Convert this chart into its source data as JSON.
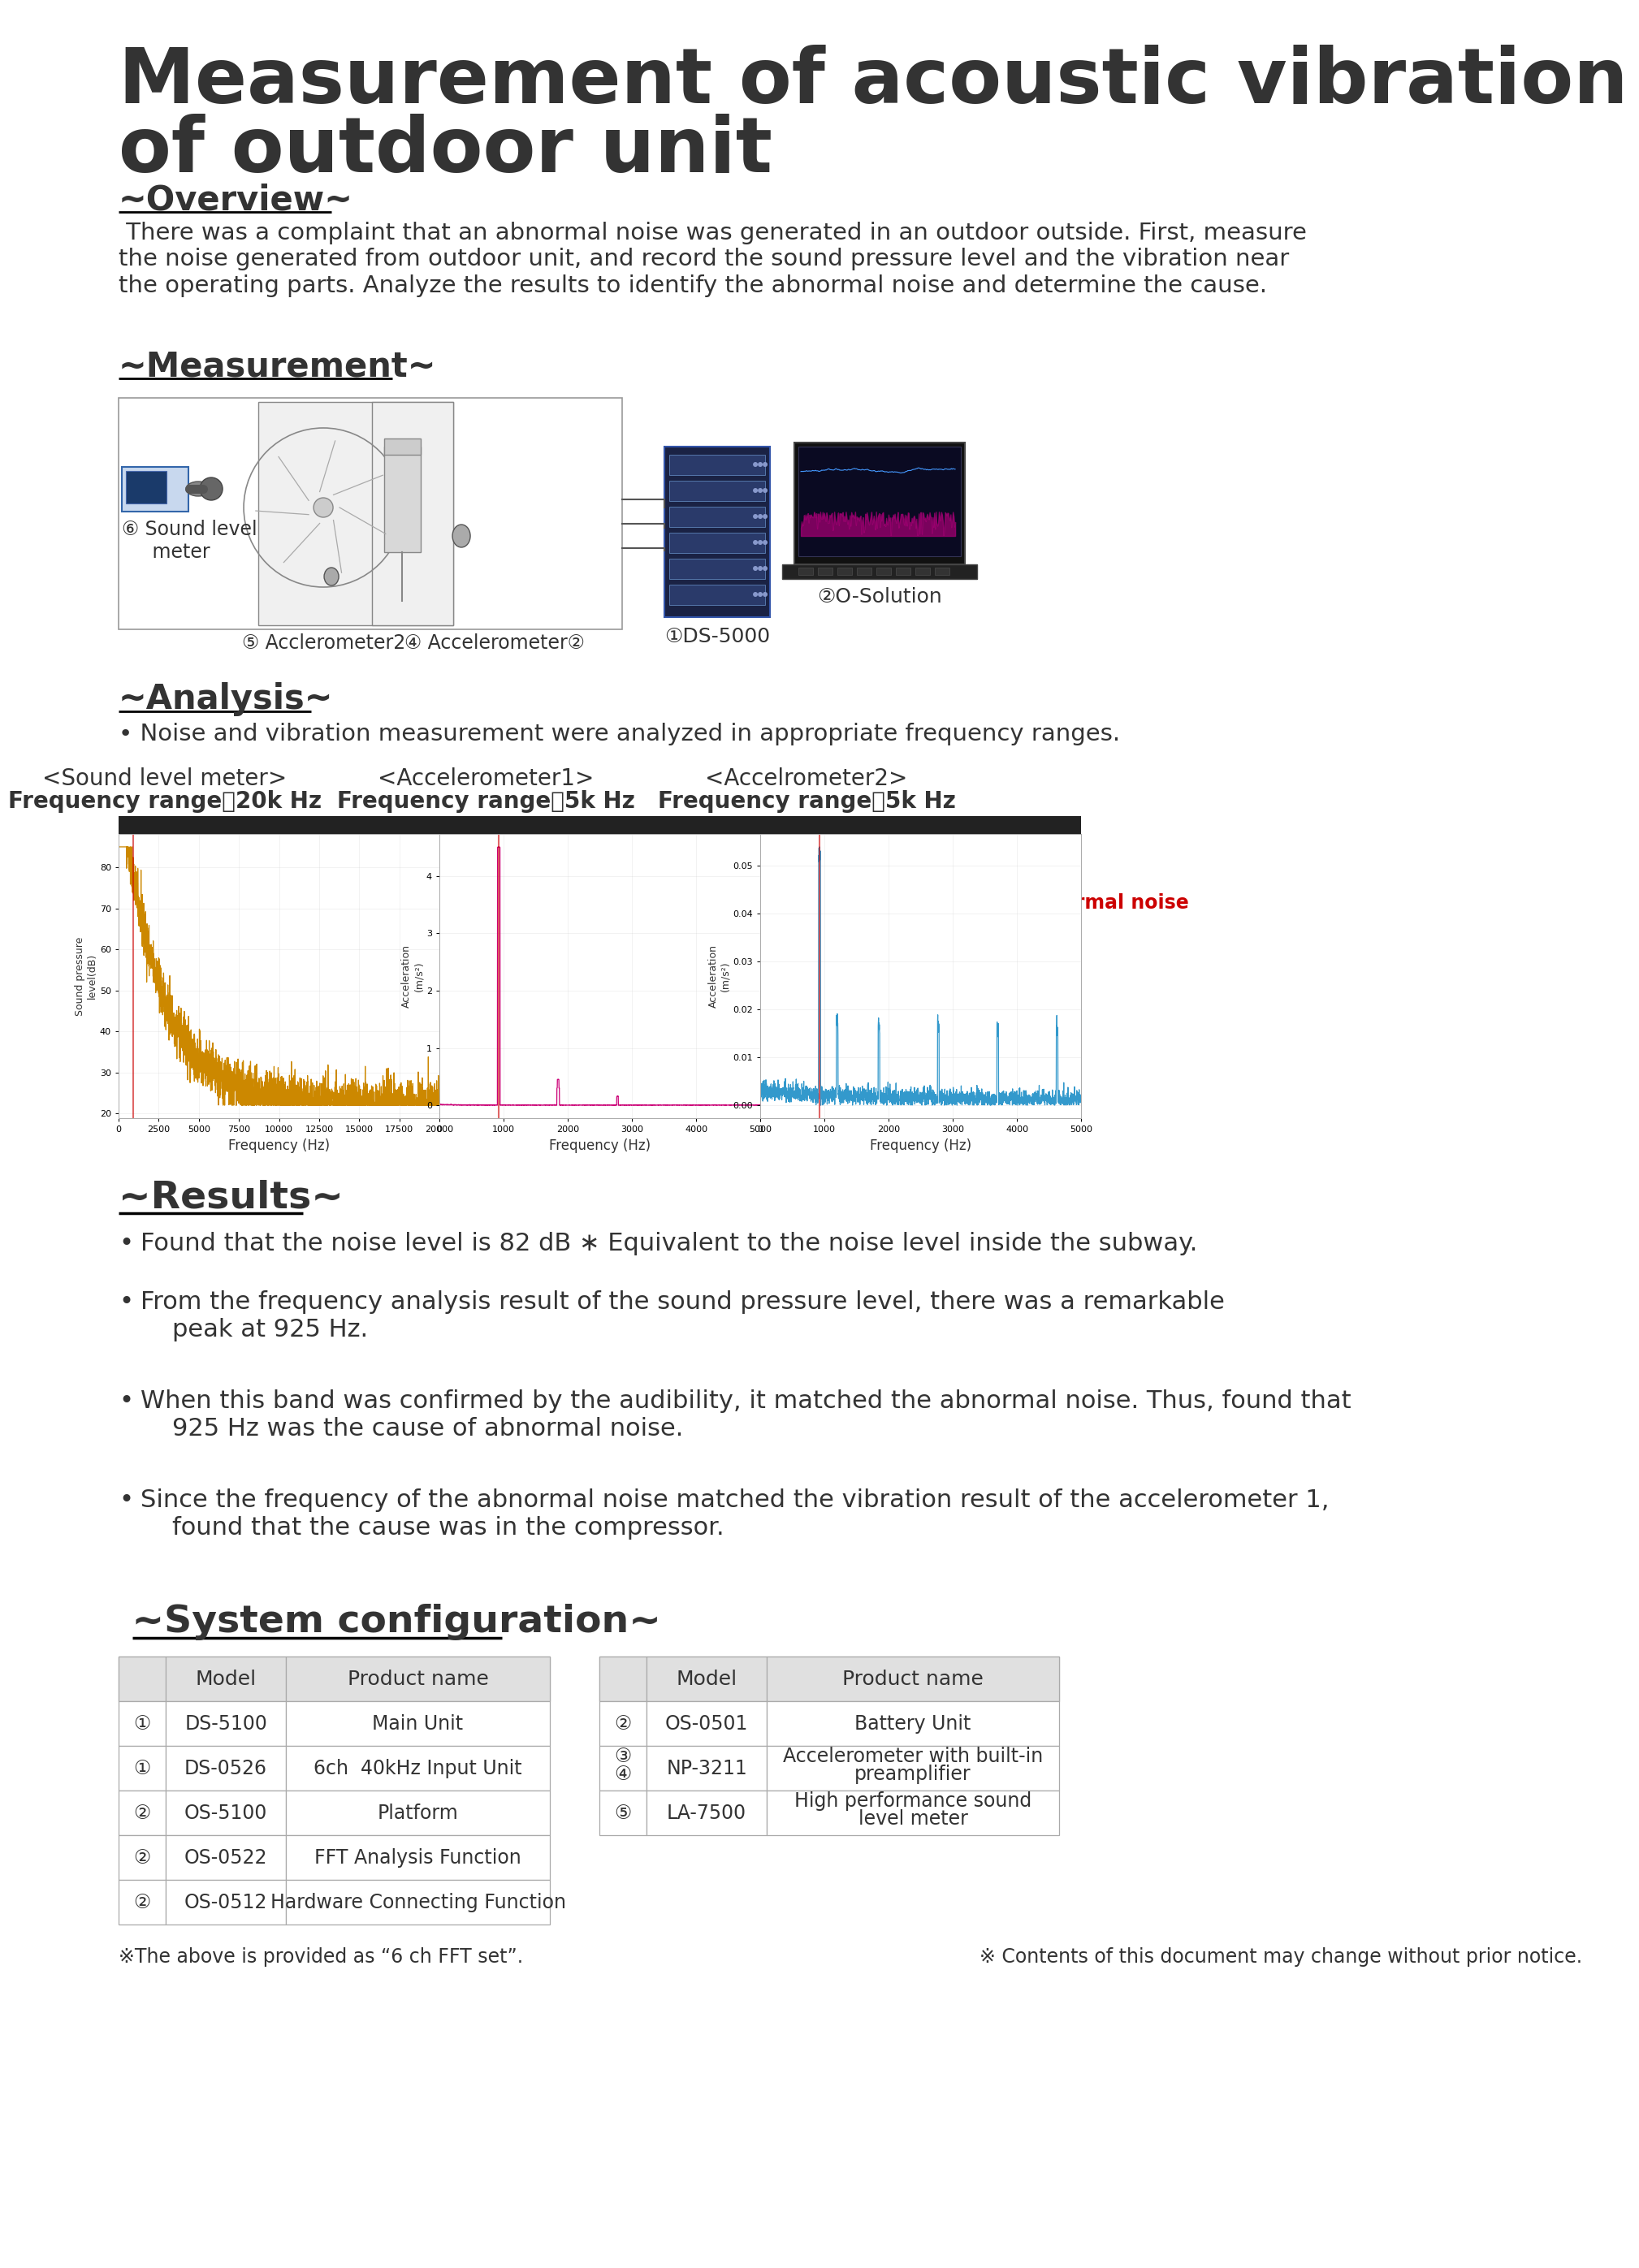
{
  "title_line1": "Measurement of acoustic vibration",
  "title_line2": "of outdoor unit",
  "bg_color": "#ffffff",
  "overview_heading": "~Overview~",
  "overview_text": " There was a complaint that an abnormal noise was generated in an outdoor outside. First, measure\nthe noise generated from outdoor unit, and record the sound pressure level and the vibration near\nthe operating parts. Analyze the results to identify the abnormal noise and determine the cause.",
  "measurement_heading": "~Measurement~",
  "analysis_heading": "~Analysis~",
  "analysis_bullet": "Noise and vibration measurement were analyzed in appropriate frequency ranges.",
  "chart1_title_l1": "<Sound level meter>",
  "chart1_title_l2": "Frequency range：20k Hz",
  "chart2_title_l1": "<Accelerometer1>",
  "chart2_title_l2": "Frequency range：5k Hz",
  "chart3_title_l1": "<Accelrometer2>",
  "chart3_title_l2": "Frequency range：5k Hz",
  "chart_xlabel": "Frequency (Hz)",
  "arrow_label": "Frequency of Abnormal noise",
  "results_heading": "~Results~",
  "results_bullets": [
    "Found that the noise level is 82 dB ∗ Equivalent to the noise level inside the subway.",
    "From the frequency analysis result of the sound pressure level, there was a remarkable\n    peak at 925 Hz.",
    "When this band was confirmed by the audibility, it matched the abnormal noise. Thus, found that\n    925 Hz was the cause of abnormal noise.",
    "Since the frequency of the abnormal noise matched the vibration result of the accelerometer 1,\n    found that the cause was in the compressor."
  ],
  "system_heading": " ~System configuration~",
  "table1_headers": [
    "",
    "Model",
    "Product name"
  ],
  "table1_rows": [
    [
      "①",
      "DS-5100",
      "Main Unit"
    ],
    [
      "①",
      "DS-0526",
      "6ch  40kHz Input Unit"
    ],
    [
      "②",
      "OS-5100",
      "Platform"
    ],
    [
      "②",
      "OS-0522",
      "FFT Analysis Function"
    ],
    [
      "②",
      "OS-0512",
      "Hardware Connecting Function"
    ]
  ],
  "table2_headers": [
    "",
    "Model",
    "Product name"
  ],
  "table2_rows": [
    [
      "②",
      "OS-0501",
      "Battery Unit"
    ],
    [
      "③\n④",
      "NP-3211",
      "Accelerometer with built-in\npreamplifier"
    ],
    [
      "⑤",
      "LA-7500",
      "High performance sound\nlevel meter"
    ]
  ],
  "footnote_left": "※The above is provided as “6 ch FFT set”.",
  "footnote_right": "※ Contents of this document may change without prior notice.",
  "chart1_color": "#cc8800",
  "chart2_color": "#cc0077",
  "chart3_color": "#3399cc",
  "arrow_color": "#cc0000",
  "text_color": "#3a3a3a",
  "header_bar_color": "#2a2a2a",
  "table_header_bg": "#e0e0e0",
  "table_border_color": "#aaaaaa"
}
